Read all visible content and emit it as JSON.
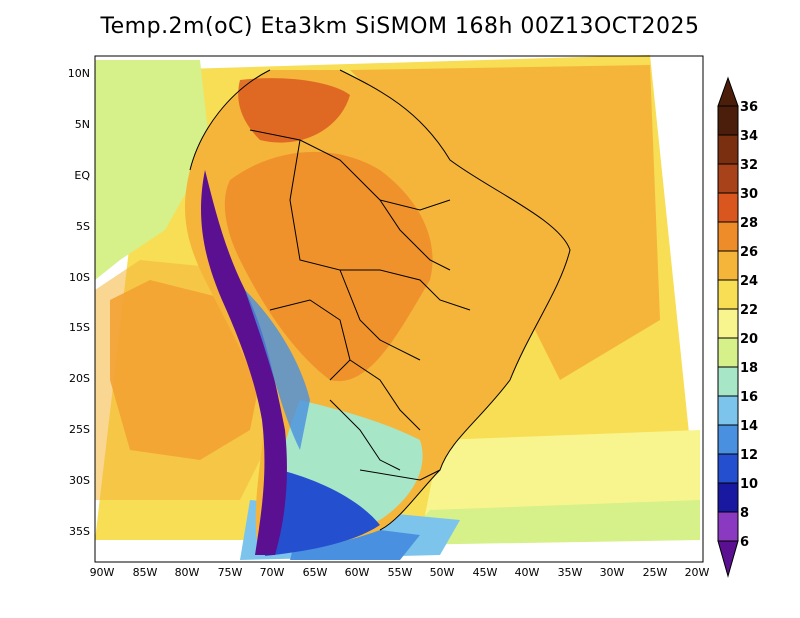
{
  "title": "Temp.2m(oC) Eta3km SiSMOM 168h 00Z13OCT2025",
  "lat_labels": [
    "10N",
    "5N",
    "EQ",
    "5S",
    "10S",
    "15S",
    "20S",
    "25S",
    "30S",
    "35S"
  ],
  "lon_labels": [
    "90W",
    "85W",
    "80W",
    "75W",
    "70W",
    "65W",
    "60W",
    "55W",
    "50W",
    "45W",
    "40W",
    "35W",
    "30W",
    "25W",
    "20W"
  ],
  "colorbar": {
    "labels": [
      "36",
      "34",
      "32",
      "30",
      "28",
      "26",
      "24",
      "22",
      "20",
      "18",
      "16",
      "14",
      "12",
      "10",
      "8",
      "6"
    ],
    "colors": [
      "#4a1e0a",
      "#7a3010",
      "#a8421a",
      "#d9561e",
      "#ef8c2a",
      "#f5b53a",
      "#f7de55",
      "#f8f58e",
      "#d6f08a",
      "#a8e6c8",
      "#7cc4ec",
      "#4a90e0",
      "#2450d0",
      "#1818a0",
      "#5a4ad8",
      "#8a3ac0",
      "#5a1090"
    ]
  },
  "colors": {
    "ocean_warm": "#f5b53a",
    "ocean_mid": "#f7de55",
    "ocean_cool": "#f8f58e",
    "land_hot": "#ef8c2a",
    "andes": "#5a1090",
    "cold_south": "#2450d0"
  }
}
